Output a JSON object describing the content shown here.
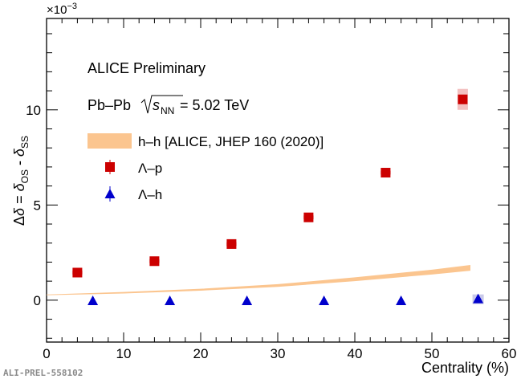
{
  "chart_data": {
    "type": "scatter",
    "title": "",
    "xlabel": "Centrality (%)",
    "ylabel": "Δδ = δ_OS - δ_SS",
    "y_exponent_label": "×10^-3",
    "xlim": [
      0,
      60
    ],
    "ylim": [
      -2.2,
      14.8
    ],
    "x_ticks": [
      0,
      10,
      20,
      30,
      40,
      50,
      60
    ],
    "y_ticks": [
      0,
      5,
      10
    ],
    "annotations": [
      "ALICE Preliminary",
      "Pb–Pb √s_NN = 5.02 TeV"
    ],
    "legend_position": "upper-left",
    "series": [
      {
        "name": "h–h [ALICE, JHEP 160 (2020)]",
        "kind": "band",
        "color": "#fbc58f",
        "x": [
          0,
          10,
          20,
          30,
          40,
          50,
          55
        ],
        "low": [
          0.26,
          0.35,
          0.5,
          0.7,
          1.0,
          1.35,
          1.55
        ],
        "high": [
          0.3,
          0.43,
          0.6,
          0.84,
          1.2,
          1.6,
          1.85
        ]
      },
      {
        "name": "Λ–p",
        "kind": "square",
        "color": "#cc0000",
        "syst_color": "#f2b9b9",
        "x": [
          4,
          14,
          24,
          34,
          44,
          54
        ],
        "y": [
          1.45,
          2.05,
          2.95,
          4.35,
          6.7,
          10.55
        ],
        "syst": [
          0.1,
          0.1,
          0.1,
          0.1,
          0.1,
          0.55
        ]
      },
      {
        "name": "Λ–h",
        "kind": "triangle",
        "color": "#0000cc",
        "x": [
          6,
          16,
          26,
          36,
          46,
          56
        ],
        "y": [
          -0.05,
          -0.05,
          -0.05,
          -0.05,
          -0.05,
          0.05
        ]
      }
    ]
  },
  "footer": {
    "label": "ALI-PREL-558102"
  }
}
